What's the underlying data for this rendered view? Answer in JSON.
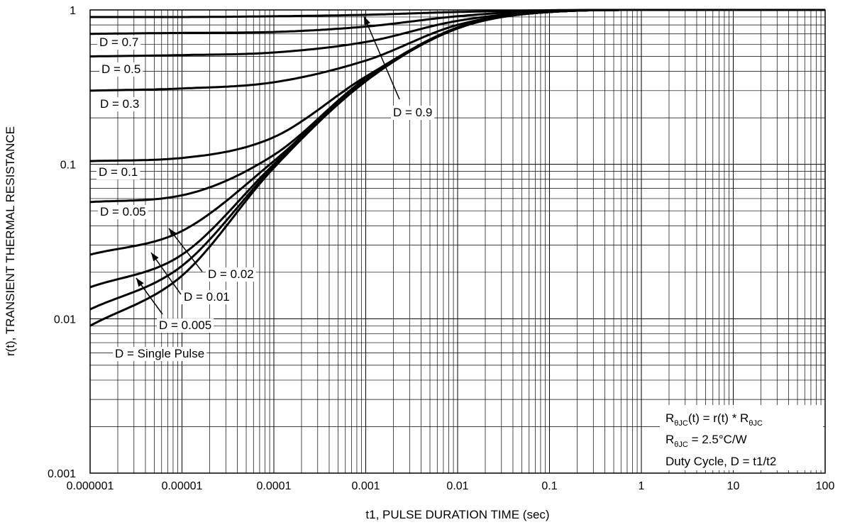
{
  "chart_data": {
    "type": "line",
    "title": "",
    "xlabel": "t1, PULSE DURATION TIME (sec)",
    "ylabel": "r(t), TRANSIENT THERMAL RESISTANCE",
    "xscale": "log",
    "yscale": "log",
    "xlim": [
      1e-06,
      100
    ],
    "ylim": [
      0.001,
      1
    ],
    "grid": "on (log major and minor)",
    "x_tick_labels": [
      "0.000001",
      "0.00001",
      "0.0001",
      "0.001",
      "0.01",
      "0.1",
      "1",
      "10",
      "100"
    ],
    "y_tick_labels": [
      "0.001",
      "0.01",
      "0.1",
      "1"
    ],
    "x": [
      1e-06,
      1e-05,
      0.0001,
      0.001,
      0.01,
      0.1,
      1,
      10,
      100
    ],
    "series": [
      {
        "name": "D = 0.9",
        "label_text": "D = 0.9",
        "values": [
          0.9,
          0.9,
          0.91,
          0.93,
          0.97,
          0.995,
          1.0,
          1.0,
          1.0
        ]
      },
      {
        "name": "D = 0.7",
        "label_text": "D = 0.7",
        "values": [
          0.7,
          0.71,
          0.72,
          0.78,
          0.91,
          0.99,
          1.0,
          1.0,
          1.0
        ]
      },
      {
        "name": "D = 0.5",
        "label_text": "D = 0.5",
        "values": [
          0.5,
          0.51,
          0.53,
          0.62,
          0.85,
          0.98,
          1.0,
          1.0,
          1.0
        ]
      },
      {
        "name": "D = 0.3",
        "label_text": "D = 0.3",
        "values": [
          0.3,
          0.31,
          0.34,
          0.47,
          0.8,
          0.975,
          1.0,
          1.0,
          1.0
        ]
      },
      {
        "name": "D = 0.1",
        "label_text": "D = 0.1",
        "values": [
          0.105,
          0.11,
          0.15,
          0.37,
          0.77,
          0.97,
          1.0,
          1.0,
          1.0
        ]
      },
      {
        "name": "D = 0.05",
        "label_text": "D = 0.05",
        "values": [
          0.057,
          0.063,
          0.115,
          0.36,
          0.76,
          0.97,
          1.0,
          1.0,
          1.0
        ]
      },
      {
        "name": "D = 0.02",
        "label_text": "D = 0.02",
        "values": [
          0.026,
          0.037,
          0.105,
          0.355,
          0.76,
          0.97,
          1.0,
          1.0,
          1.0
        ]
      },
      {
        "name": "D = 0.01",
        "label_text": "D = 0.01",
        "values": [
          0.016,
          0.026,
          0.1,
          0.35,
          0.76,
          0.97,
          1.0,
          1.0,
          1.0
        ]
      },
      {
        "name": "D = 0.005",
        "label_text": "D = 0.005",
        "values": [
          0.0115,
          0.022,
          0.097,
          0.35,
          0.76,
          0.97,
          1.0,
          1.0,
          1.0
        ]
      },
      {
        "name": "D = Single Pulse",
        "label_text": "D = Single Pulse",
        "values": [
          0.009,
          0.019,
          0.095,
          0.345,
          0.76,
          0.97,
          1.0,
          1.0,
          1.0
        ]
      }
    ],
    "info_box": [
      "(t) = r(t) * ",
      " = 2.5°C/W",
      "Duty Cycle, D = t1/t2"
    ],
    "info_symbol": {
      "main": "R",
      "sub": "θJC"
    }
  }
}
